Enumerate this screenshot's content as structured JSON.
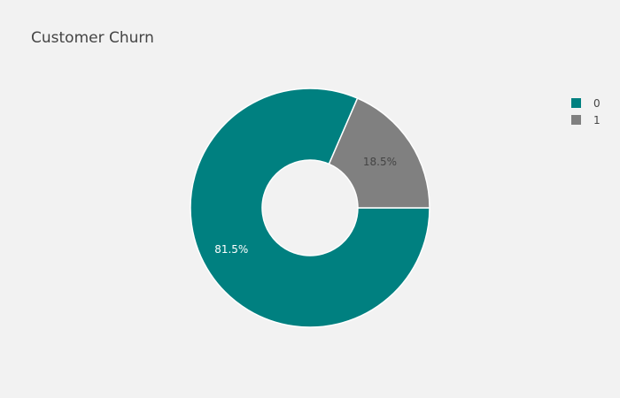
{
  "chart_data": {
    "type": "pie",
    "title": "Customer Churn",
    "hole": 0.4,
    "slices": [
      {
        "label": "0",
        "value": 81.5,
        "text": "81.5%",
        "color": "#008080",
        "text_color": "#ffffff"
      },
      {
        "label": "1",
        "value": 18.5,
        "text": "18.5%",
        "color": "#808080",
        "text_color": "#444444"
      }
    ],
    "legend": {
      "position": "top-right"
    }
  }
}
